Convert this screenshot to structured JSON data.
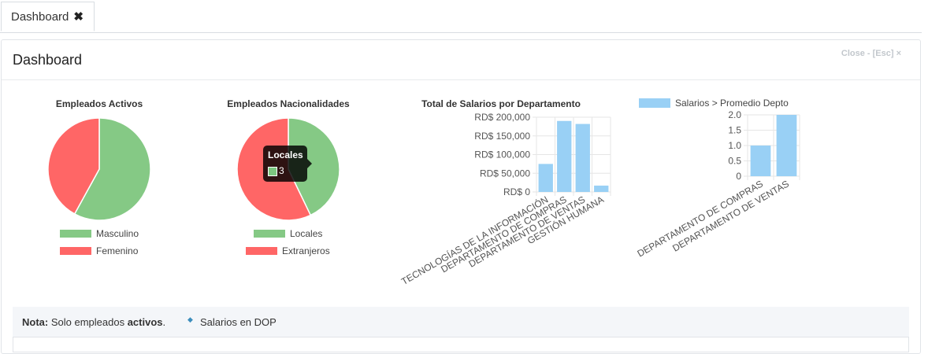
{
  "tab": {
    "label": "Dashboard",
    "close_icon": "close-x-icon"
  },
  "panel": {
    "title": "Dashboard",
    "close_label": "Close - [Esc] ×"
  },
  "charts": {
    "activos": {
      "title": "Empleados Activos",
      "legend": [
        {
          "label": "Masculino",
          "color": "#85c985"
        },
        {
          "label": "Femenino",
          "color": "#ff6666"
        }
      ]
    },
    "nacionalidades": {
      "title": "Empleados Nacionalidades",
      "legend": [
        {
          "label": "Locales",
          "color": "#85c985"
        },
        {
          "label": "Extranjeros",
          "color": "#ff6666"
        }
      ],
      "tooltip": {
        "title": "Locales",
        "value": "3"
      }
    },
    "salarios": {
      "title": "Total de Salarios por Departamento",
      "y_ticks": [
        "RD$ 200,000",
        "RD$ 150,000",
        "RD$ 100,000",
        "RD$ 50,000",
        "RD$ 0"
      ],
      "x_labels": [
        "TECNOLOGÍAS DE LA INFORMACIÓN",
        "DEPARTAMENTO DE COMPRAS",
        "DEPARTAMENTO DE VENTAS",
        "GESTIÓN HUMANA"
      ]
    },
    "promedio": {
      "legend_label": "Salarios > Promedio Depto",
      "y_ticks": [
        "2.0",
        "1.5",
        "1.0",
        "0.5",
        "0"
      ],
      "x_labels": [
        "DEPARTAMENTO DE COMPRAS",
        "DEPARTAMENTO DE VENTAS"
      ]
    }
  },
  "note": {
    "label": "Nota:",
    "text_before": "Solo empleados",
    "bold_word": "activos",
    "text_after": ".",
    "item": "Salarios en DOP"
  },
  "chart_data": [
    {
      "type": "pie",
      "title": "Empleados Activos",
      "categories": [
        "Masculino",
        "Femenino"
      ],
      "values": [
        58,
        42
      ],
      "colors": [
        "#85c985",
        "#ff6666"
      ]
    },
    {
      "type": "pie",
      "title": "Empleados Nacionalidades",
      "categories": [
        "Locales",
        "Extranjeros"
      ],
      "values": [
        3,
        4
      ],
      "colors": [
        "#85c985",
        "#ff6666"
      ]
    },
    {
      "type": "bar",
      "title": "Total de Salarios por Departamento",
      "categories": [
        "TECNOLOGÍAS DE LA INFORMACIÓN",
        "DEPARTAMENTO DE COMPRAS",
        "DEPARTAMENTO DE VENTAS",
        "GESTIÓN HUMANA"
      ],
      "values": [
        75000,
        190000,
        182000,
        17000
      ],
      "ylim": [
        0,
        200000
      ],
      "color": "#99d0f5",
      "grid": true
    },
    {
      "type": "bar",
      "title": "",
      "series": [
        {
          "name": "Salarios > Promedio Depto",
          "values": [
            1,
            2
          ]
        }
      ],
      "categories": [
        "DEPARTAMENTO DE COMPRAS",
        "DEPARTAMENTO DE VENTAS"
      ],
      "ylim": [
        0,
        2
      ],
      "color": "#99d0f5",
      "legend": "top",
      "grid": true
    }
  ]
}
